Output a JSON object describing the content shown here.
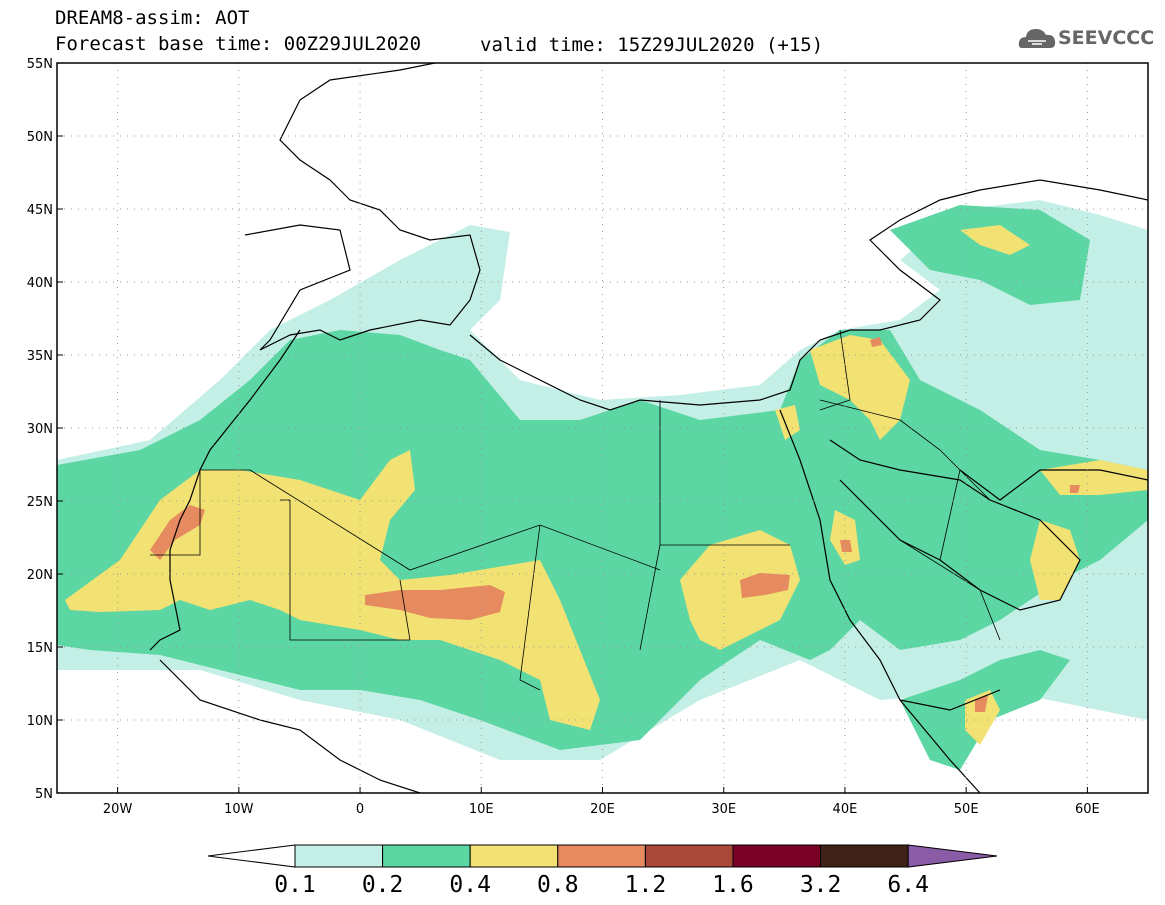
{
  "title": {
    "line1": "DREAM8-assim: AOT",
    "line2": "Forecast base time: 00Z29JUL2020",
    "valid": "valid time: 15Z29JUL2020 (+15)"
  },
  "logo": {
    "text": "SEEVCCC",
    "icon": "cloud-icon"
  },
  "map": {
    "lon_labels": [
      "20W",
      "10W",
      "0",
      "10E",
      "20E",
      "30E",
      "40E",
      "50E",
      "60E"
    ],
    "lat_labels": [
      "55N",
      "50N",
      "45N",
      "40N",
      "35N",
      "30N",
      "25N",
      "20N",
      "15N",
      "10N",
      "5N"
    ],
    "lon_range": [
      -25,
      65
    ],
    "lat_range": [
      5,
      55
    ],
    "grid": true
  },
  "colorbar": {
    "levels": [
      "0.1",
      "0.2",
      "0.4",
      "0.8",
      "1.2",
      "1.6",
      "3.2",
      "6.4"
    ],
    "colors": [
      "#c4efe6",
      "#5cd6a2",
      "#f2e274",
      "#e68a60",
      "#a84838",
      "#7a0026",
      "#3e2218",
      "#8a5ca8"
    ],
    "under_color": "#ffffff"
  }
}
